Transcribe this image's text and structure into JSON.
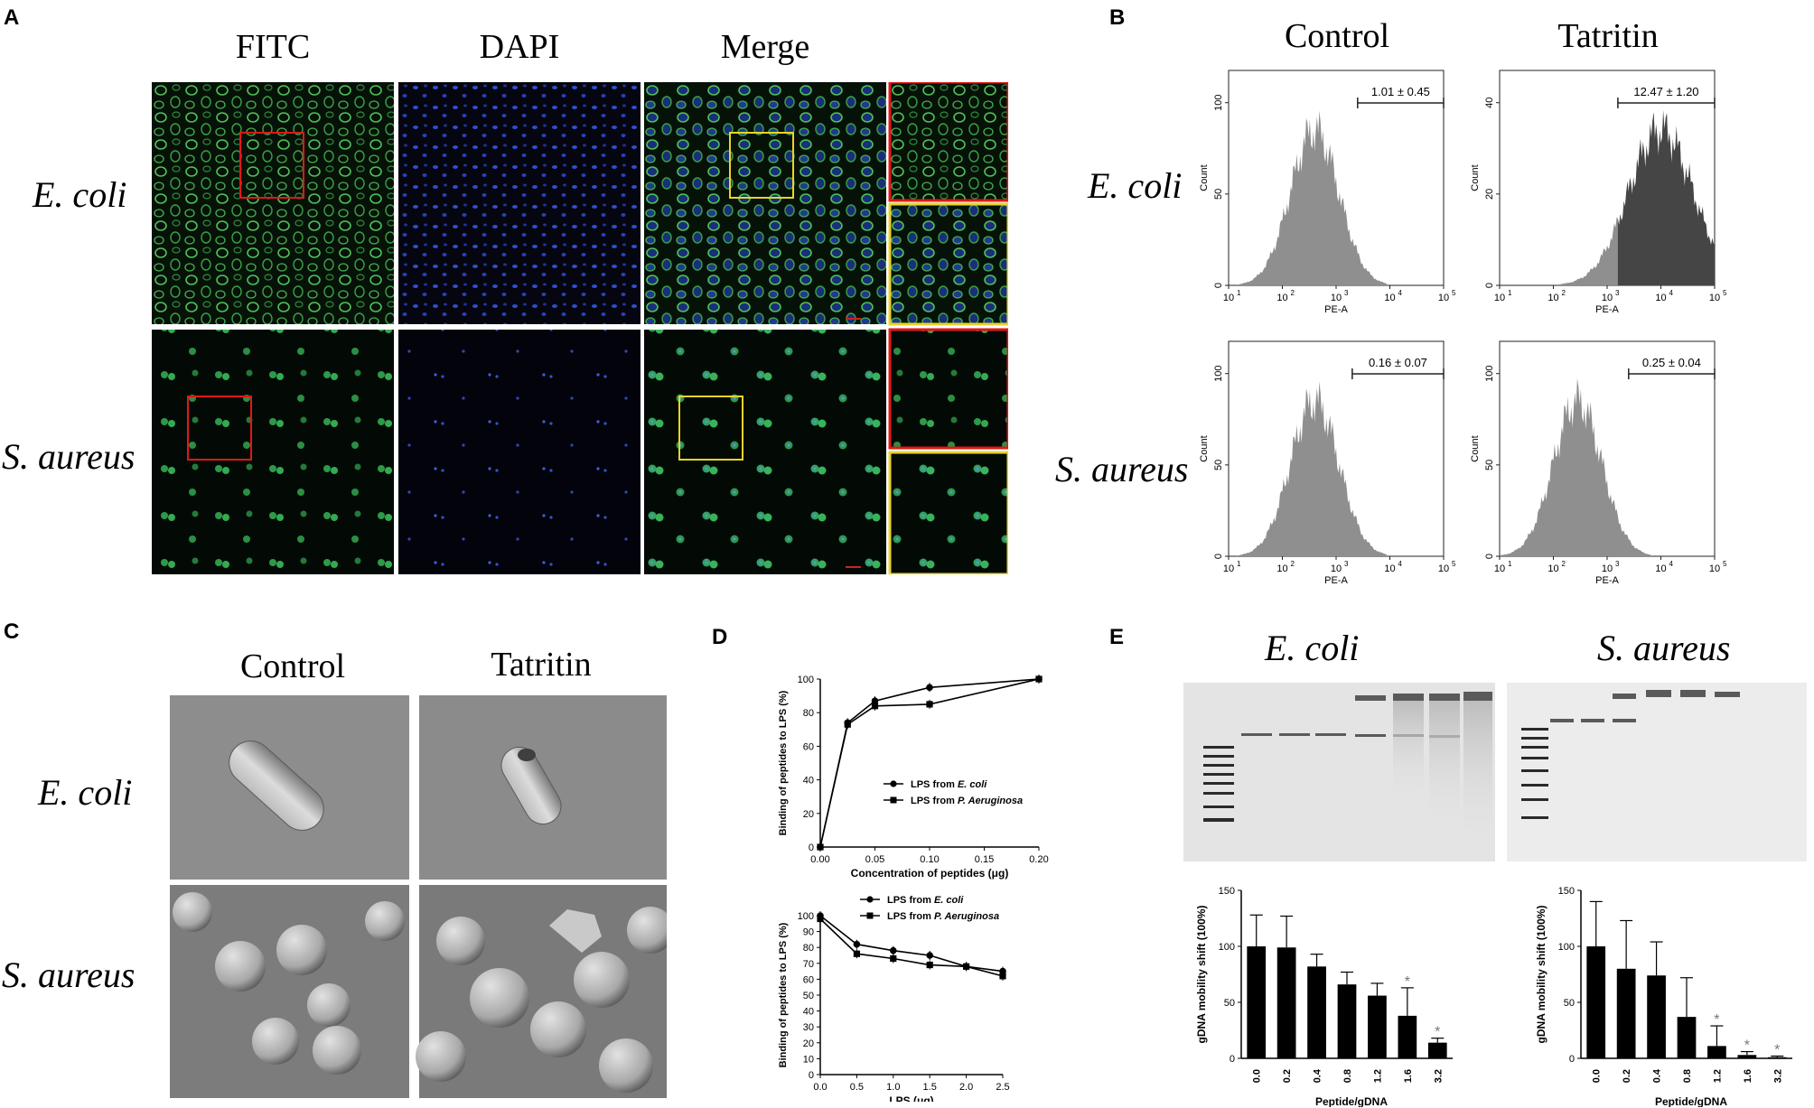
{
  "panels": {
    "A": "A",
    "B": "B",
    "C": "C",
    "D": "D",
    "E": "E"
  },
  "panelA": {
    "columns": [
      "FITC",
      "DAPI",
      "Merge"
    ],
    "rows": [
      "E. coli",
      "S. aureus"
    ]
  },
  "panelB": {
    "columns": [
      "Control",
      "Tatritin"
    ],
    "rows": [
      "E. coli",
      "S. aureus"
    ],
    "xlabel": "PE-A",
    "ylabel": "Count",
    "xticks": [
      "10",
      "10",
      "10",
      "10",
      "10"
    ],
    "xtick_exp": [
      "1",
      "2",
      "3",
      "4",
      "5"
    ],
    "plots": [
      {
        "gate": "1.01 ± 0.45",
        "yticks": [
          "0",
          "50",
          "100"
        ]
      },
      {
        "gate": "12.47 ± 1.20",
        "yticks": [
          "0",
          "20",
          "40"
        ]
      },
      {
        "gate": "0.16 ± 0.07",
        "yticks": [
          "0",
          "50",
          "100"
        ]
      },
      {
        "gate": "0.25 ± 0.04",
        "yticks": [
          "0",
          "50",
          "100"
        ]
      }
    ]
  },
  "panelC": {
    "columns": [
      "Control",
      "Tatritin"
    ],
    "rows": [
      "E. coli",
      "S. aureus"
    ]
  },
  "panelE": {
    "columns": [
      "E. coli",
      "S. aureus"
    ],
    "xlabel": "Peptide/gDNA",
    "ylabel": "gDNA mobility shift (100%)"
  },
  "chart_data": [
    {
      "type": "line",
      "id": "D-top",
      "xlabel": "Concentration of peptides (μg)",
      "ylabel": "Binding of peptides to LPS (%)",
      "xlim": [
        0,
        0.2
      ],
      "ylim": [
        0,
        100
      ],
      "xticks": [
        "0.00",
        "0.05",
        "0.10",
        "0.15",
        "0.20"
      ],
      "yticks": [
        "0",
        "20",
        "40",
        "60",
        "80",
        "100"
      ],
      "series": [
        {
          "name": "LPS from E. coli",
          "marker": "circle",
          "x": [
            0,
            0.025,
            0.05,
            0.1,
            0.2
          ],
          "y": [
            0,
            74,
            87,
            95,
            100
          ]
        },
        {
          "name": "LPS from P. Aeruginosa",
          "marker": "square",
          "x": [
            0,
            0.025,
            0.05,
            0.1,
            0.2
          ],
          "y": [
            0,
            73,
            84,
            85,
            100
          ]
        }
      ],
      "legend_position": "lower-right"
    },
    {
      "type": "line",
      "id": "D-bottom",
      "xlabel": "LPS (μg)",
      "ylabel": "Binding of peptides to LPS (%)",
      "xlim": [
        0,
        2.5
      ],
      "ylim": [
        0,
        100
      ],
      "xticks": [
        "0.0",
        "0.5",
        "1.0",
        "1.5",
        "2.0",
        "2.5"
      ],
      "yticks": [
        "0",
        "10",
        "20",
        "30",
        "40",
        "50",
        "60",
        "70",
        "80",
        "90",
        "100"
      ],
      "series": [
        {
          "name": "LPS from E. coli",
          "marker": "circle",
          "x": [
            0,
            0.5,
            1.0,
            1.5,
            2.0,
            2.5
          ],
          "y": [
            100,
            82,
            78,
            75,
            68,
            65
          ]
        },
        {
          "name": "LPS from P. Aeruginosa",
          "marker": "square",
          "x": [
            0,
            0.5,
            1.0,
            1.5,
            2.0,
            2.5
          ],
          "y": [
            98,
            76,
            73,
            69,
            68,
            62
          ]
        }
      ],
      "legend_position": "top-right"
    },
    {
      "type": "bar",
      "id": "E-ecoli",
      "categories": [
        "0.0",
        "0.2",
        "0.4",
        "0.8",
        "1.2",
        "1.6",
        "3.2"
      ],
      "values": [
        100,
        99,
        82,
        66,
        56,
        38,
        14
      ],
      "errors": [
        28,
        28,
        11,
        11,
        11,
        25,
        4
      ],
      "significant": [
        false,
        false,
        false,
        false,
        false,
        true,
        true
      ],
      "ylim": [
        0,
        150
      ],
      "yticks": [
        "0",
        "50",
        "100",
        "150"
      ],
      "marker": "*"
    },
    {
      "type": "bar",
      "id": "E-saureus",
      "categories": [
        "0.0",
        "0.2",
        "0.4",
        "0.8",
        "1.2",
        "1.6",
        "3.2"
      ],
      "values": [
        100,
        80,
        74,
        37,
        11,
        3,
        1
      ],
      "errors": [
        40,
        43,
        30,
        35,
        18,
        3,
        1
      ],
      "significant": [
        false,
        false,
        false,
        false,
        true,
        true,
        true
      ],
      "ylim": [
        0,
        150
      ],
      "yticks": [
        "0",
        "50",
        "100",
        "150"
      ],
      "marker": "*"
    }
  ]
}
